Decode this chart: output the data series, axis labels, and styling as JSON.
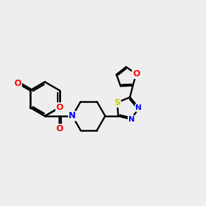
{
  "bg_color": "#eeeeee",
  "bond_color": "#000000",
  "bond_width": 1.8,
  "atom_colors": {
    "O": "#ff0000",
    "N": "#0000ff",
    "S": "#cccc00",
    "C": "#000000"
  },
  "font_size": 9,
  "figsize": [
    3.0,
    3.0
  ],
  "dpi": 100
}
